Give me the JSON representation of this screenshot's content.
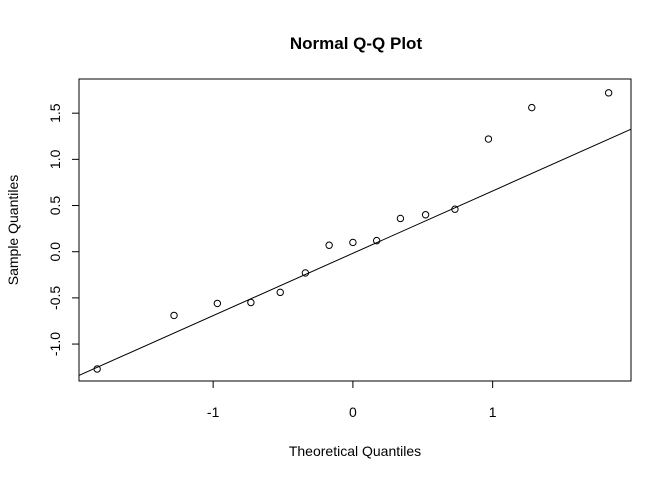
{
  "chart_data": {
    "type": "scatter",
    "title": "Normal Q-Q Plot",
    "xlabel": "Theoretical Quantiles",
    "ylabel": "Sample Quantiles",
    "xlim": [
      -1.96,
      1.99
    ],
    "ylim": [
      -1.4,
      1.87
    ],
    "x_ticks": [
      -1,
      0,
      1
    ],
    "x_tick_labels": [
      "-1",
      "0",
      "1"
    ],
    "y_ticks": [
      -1.0,
      -0.5,
      0.0,
      0.5,
      1.0,
      1.5
    ],
    "y_tick_labels": [
      "-1.0",
      "-0.5",
      "0.0",
      "0.5",
      "1.0",
      "1.5"
    ],
    "grid": false,
    "points": [
      {
        "x": -1.83,
        "y": -1.27
      },
      {
        "x": -1.28,
        "y": -0.69
      },
      {
        "x": -0.97,
        "y": -0.56
      },
      {
        "x": -0.73,
        "y": -0.55
      },
      {
        "x": -0.52,
        "y": -0.44
      },
      {
        "x": -0.34,
        "y": -0.23
      },
      {
        "x": -0.17,
        "y": 0.07
      },
      {
        "x": 0.0,
        "y": 0.1
      },
      {
        "x": 0.17,
        "y": 0.12
      },
      {
        "x": 0.34,
        "y": 0.36
      },
      {
        "x": 0.52,
        "y": 0.4
      },
      {
        "x": 0.73,
        "y": 0.46
      },
      {
        "x": 0.97,
        "y": 1.22
      },
      {
        "x": 1.28,
        "y": 1.56
      },
      {
        "x": 1.83,
        "y": 1.72
      }
    ],
    "reference_line": {
      "intercept": -0.017,
      "slope": 0.675
    }
  }
}
